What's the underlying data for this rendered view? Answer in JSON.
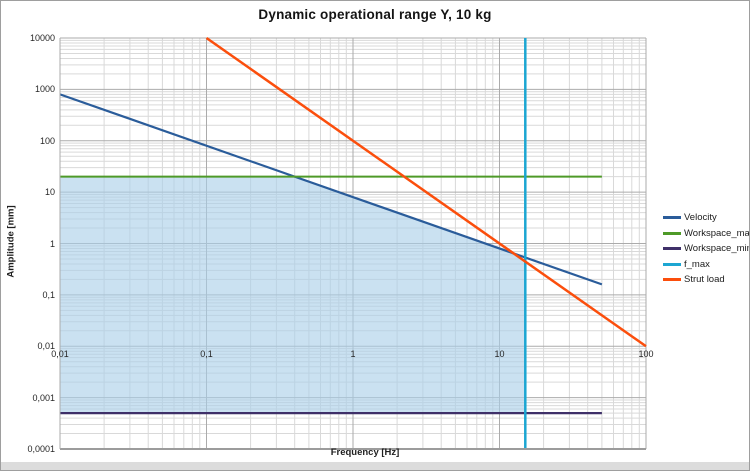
{
  "chart_data": {
    "type": "line",
    "title": "Dynamic operational range Y, 10 kg",
    "xlabel": "Frequency [Hz]",
    "ylabel": "Amplitude [mm]",
    "grid": "log major and minor gridlines, both axes",
    "legend_position": "right",
    "x_axis": {
      "scale": "log",
      "min": 0.01,
      "max": 100,
      "tick_values": [
        0.01,
        0.1,
        1,
        10,
        100
      ],
      "tick_labels": [
        "0,01",
        "0,1",
        "1",
        "10",
        "100"
      ]
    },
    "y_axis": {
      "scale": "log",
      "min": 0.0001,
      "max": 10000,
      "tick_values": [
        10000,
        1000,
        100,
        10,
        1,
        0.1,
        0.01,
        0.001,
        0.0001
      ],
      "tick_labels": [
        "10000",
        "1000",
        "100",
        "10",
        "1",
        "0,1",
        "0,01",
        "0,001",
        "0,0001"
      ]
    },
    "series": [
      {
        "name": "Velocity",
        "color": "#2a5c9a",
        "width": 2.2,
        "points": [
          [
            0.01,
            800
          ],
          [
            50,
            0.16
          ]
        ]
      },
      {
        "name": "Workspace_max",
        "color": "#4e9a28",
        "width": 2.0,
        "points": [
          [
            0.01,
            20
          ],
          [
            50,
            20
          ]
        ]
      },
      {
        "name": "Workspace_min",
        "color": "#3f3069",
        "width": 2.2,
        "points": [
          [
            0.01,
            0.0005
          ],
          [
            50,
            0.0005
          ]
        ]
      },
      {
        "name": "f_max",
        "color": "#1ca6d2",
        "width": 2.5,
        "points": [
          [
            15,
            0.0001
          ],
          [
            15,
            10000
          ]
        ]
      },
      {
        "name": "Strut load",
        "color": "#fb4e0c",
        "width": 2.5,
        "points": [
          [
            0.1,
            10000
          ],
          [
            100,
            0.01
          ]
        ]
      }
    ],
    "operating_region": {
      "fill": "#a9cfe9",
      "opacity": 0.62,
      "vertices": [
        [
          0.01,
          0.0005
        ],
        [
          0.01,
          20
        ],
        [
          0.4,
          20
        ],
        [
          12.5,
          0.64
        ],
        [
          15,
          0.4444
        ],
        [
          15,
          0.0005
        ]
      ]
    },
    "key_values": {
      "workspace_max_mm": 20,
      "workspace_min_mm": 0.0005,
      "f_max_hz": 15,
      "velocity_amplitude_at_1hz_mm": 8,
      "strut_load_amplitude_at_1hz_mm": 100
    },
    "colors": {
      "grid_minor": "#d9d9d9",
      "grid_major": "#ababab",
      "axis_line": "#9c9c9c",
      "background": "#ffffff"
    }
  }
}
